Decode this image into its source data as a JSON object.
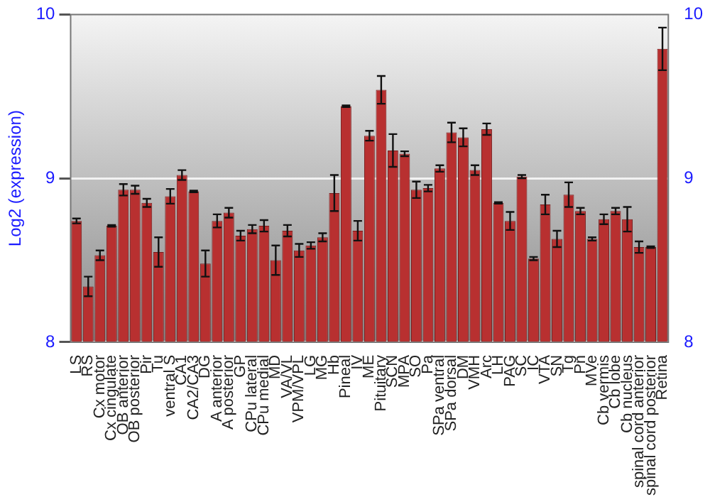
{
  "chart_data": {
    "type": "bar",
    "ylabel": "Log2 (expression)",
    "categories": [
      "LS",
      "RS",
      "Cx motor",
      "Cx cingulate",
      "OB anterior",
      "OB posterior",
      "Pir",
      "Tu",
      "ventral S",
      "CA1",
      "CA2/CA3",
      "DG",
      "A anterior",
      "A posterior",
      "GP",
      "CPu lateral",
      "CPu medial",
      "MD",
      "VA/VL",
      "VPM/VPL",
      "LG",
      "MG",
      "Hb",
      "Pineal",
      "IV",
      "ME",
      "Pituitary",
      "SCN",
      "MPA",
      "SO",
      "Pa",
      "SPa ventral",
      "SPa dorsal",
      "DM",
      "VMH",
      "Arc",
      "LH",
      "PAG",
      "SC",
      "IC",
      "VTA",
      "SN",
      "Tg",
      "Pn",
      "MVe",
      "Cb vermis",
      "Cb lobe",
      "Cb nucleus",
      "spinal cord anterior",
      "spinal cord posterior",
      "Retina"
    ],
    "values": [
      8.74,
      8.34,
      8.53,
      8.71,
      8.93,
      8.93,
      8.85,
      8.55,
      8.89,
      9.02,
      8.92,
      8.48,
      8.74,
      8.79,
      8.65,
      8.69,
      8.71,
      8.5,
      8.68,
      8.56,
      8.59,
      8.64,
      8.91,
      9.44,
      8.68,
      9.26,
      9.54,
      9.17,
      9.15,
      8.93,
      8.94,
      9.06,
      9.28,
      9.25,
      9.05,
      9.3,
      8.85,
      8.74,
      9.01,
      8.51,
      8.84,
      8.63,
      8.9,
      8.8,
      8.63,
      8.75,
      8.8,
      8.75,
      8.58,
      8.58,
      9.79
    ],
    "errors": [
      0.015,
      0.06,
      0.03,
      0.005,
      0.035,
      0.025,
      0.025,
      0.09,
      0.045,
      0.03,
      0.005,
      0.08,
      0.04,
      0.03,
      0.03,
      0.025,
      0.035,
      0.09,
      0.035,
      0.04,
      0.02,
      0.025,
      0.11,
      0.005,
      0.06,
      0.03,
      0.085,
      0.1,
      0.015,
      0.05,
      0.02,
      0.02,
      0.06,
      0.055,
      0.03,
      0.035,
      0.005,
      0.055,
      0.01,
      0.01,
      0.06,
      0.05,
      0.075,
      0.02,
      0.01,
      0.03,
      0.02,
      0.075,
      0.035,
      0.005,
      0.13
    ],
    "color": "#b83030",
    "ylim": [
      8,
      10
    ],
    "yticks": [
      8,
      9,
      10
    ],
    "y2lim": [
      8,
      10
    ],
    "y2ticks": [
      8,
      9,
      10
    ],
    "grid": "y",
    "legend": false
  }
}
